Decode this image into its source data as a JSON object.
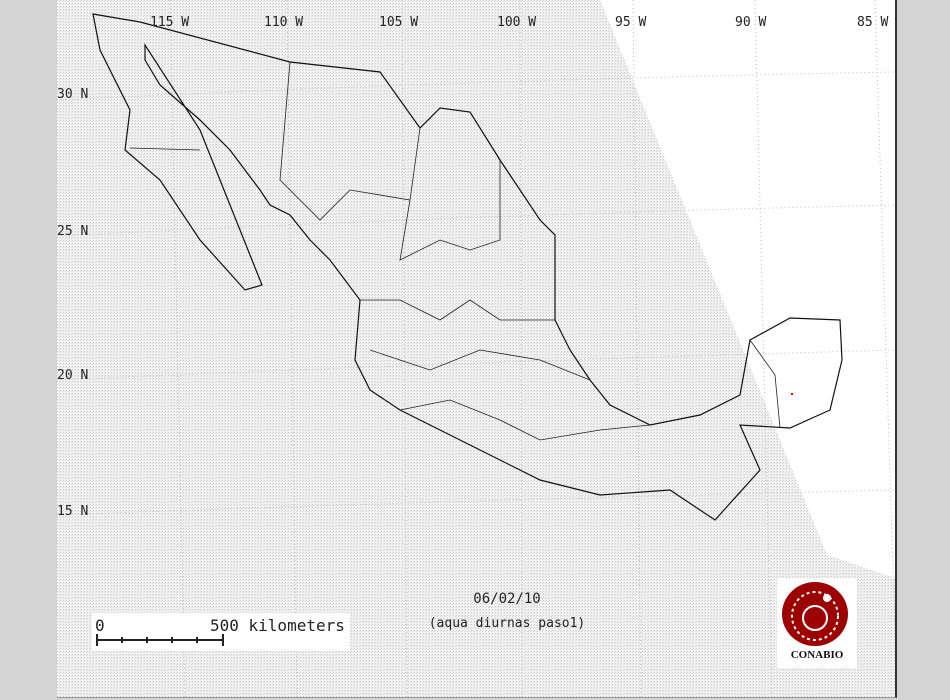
{
  "map": {
    "longitude_labels": [
      "115 W",
      "110 W",
      "105 W",
      "100 W",
      "95 W",
      "90 W",
      "85 W"
    ],
    "latitude_labels": [
      "30 N",
      "25 N",
      "20 N",
      "15 N"
    ],
    "date": "06/02/10",
    "subtitle": "(aqua diurnas paso1)",
    "scale": {
      "start": "0",
      "end_label": "500 kilometers"
    },
    "logo_text": "CONABIO",
    "colors": {
      "coverage": "#e6e6e6",
      "outside": "#ffffff",
      "logo": "#9c0000",
      "background": "#d4d4d4",
      "hotspot": "#ff0000"
    }
  }
}
